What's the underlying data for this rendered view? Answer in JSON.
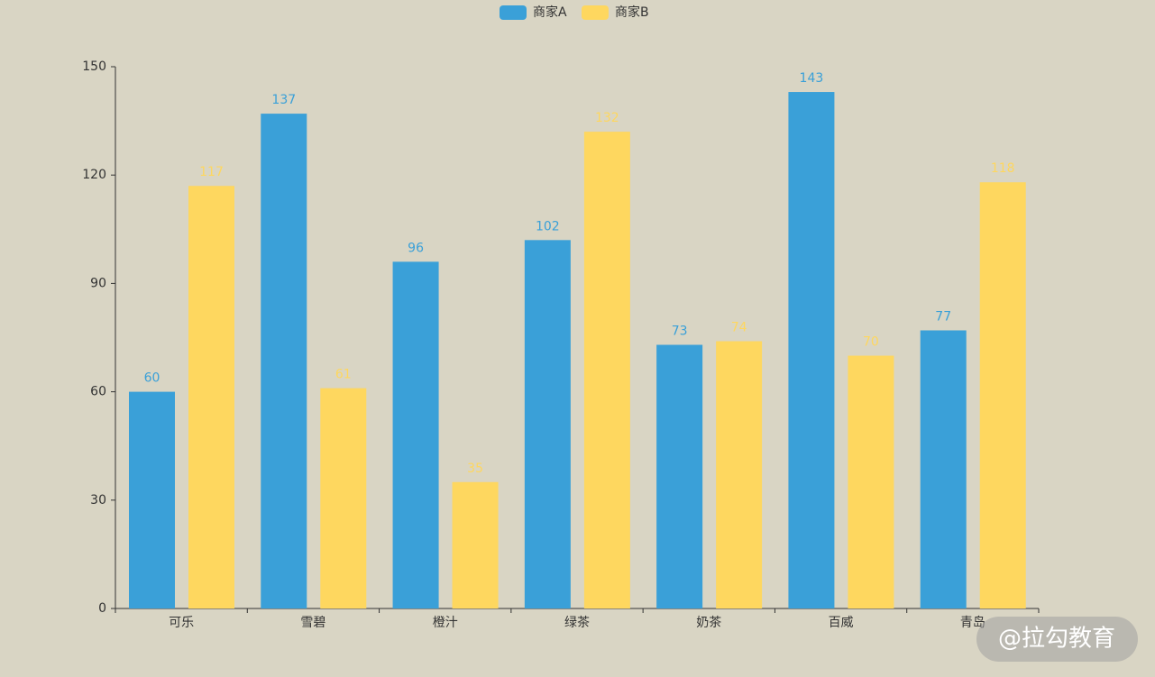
{
  "chart_data": {
    "type": "bar",
    "categories": [
      "可乐",
      "雪碧",
      "橙汁",
      "绿茶",
      "奶茶",
      "百威",
      "青岛"
    ],
    "series": [
      {
        "name": "商家A",
        "color": "#3aa0d8",
        "values": [
          60,
          137,
          96,
          102,
          73,
          143,
          77
        ]
      },
      {
        "name": "商家B",
        "color": "#fed75f",
        "values": [
          117,
          61,
          35,
          132,
          74,
          70,
          118
        ]
      }
    ],
    "ylim": [
      0,
      150
    ],
    "yticks": [
      0,
      30,
      60,
      90,
      120,
      150
    ],
    "grid": false,
    "legend": "top"
  },
  "watermark": "@拉勾教育"
}
